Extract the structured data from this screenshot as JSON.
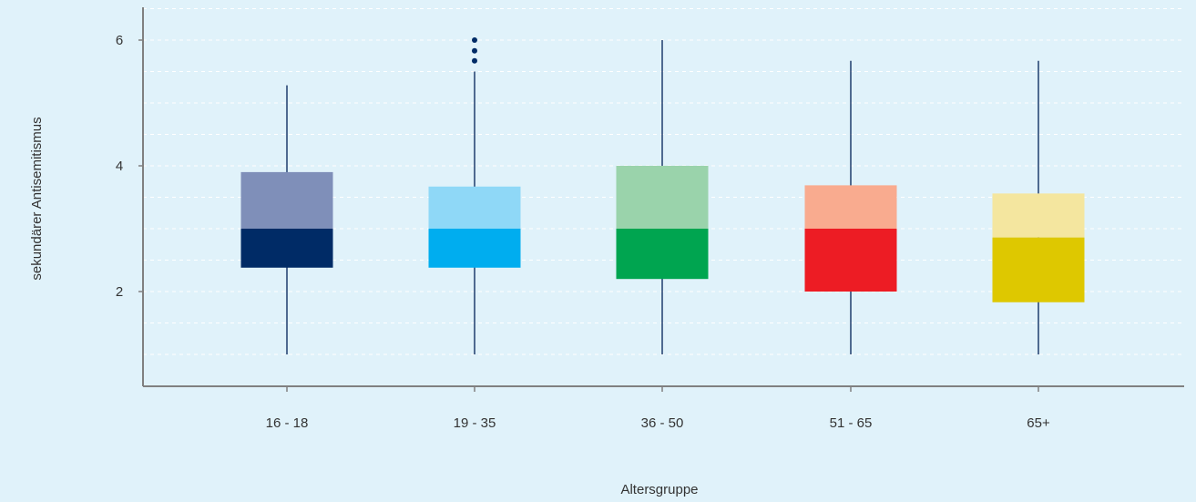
{
  "chart_data": {
    "type": "boxplot",
    "title": "",
    "xlabel": "Altersgruppe",
    "ylabel": "sekundärer Antisemitismus",
    "yticks": [
      2,
      4,
      6
    ],
    "ylim": [
      0.5,
      6.5
    ],
    "grid": true,
    "categories": [
      "16 - 18",
      "19 - 35",
      "36 - 50",
      "51 - 65",
      "65+"
    ],
    "boxes": [
      {
        "category": "16 - 18",
        "whisker_low": 1.0,
        "q1": 2.38,
        "median": 3.0,
        "q3": 3.9,
        "whisker_high": 5.28,
        "outliers": [],
        "color_lower": "#002b66",
        "color_upper": "#7f8fb9"
      },
      {
        "category": "19 - 35",
        "whisker_low": 1.0,
        "q1": 2.38,
        "median": 3.0,
        "q3": 3.67,
        "whisker_high": 5.5,
        "outliers": [
          5.67,
          5.83,
          6.0
        ],
        "color_lower": "#00adef",
        "color_upper": "#8fd8f7"
      },
      {
        "category": "36 - 50",
        "whisker_low": 1.0,
        "q1": 2.2,
        "median": 3.0,
        "q3": 4.0,
        "whisker_high": 6.0,
        "outliers": [],
        "color_lower": "#00a550",
        "color_upper": "#9ad3ab"
      },
      {
        "category": "51 - 65",
        "whisker_low": 1.0,
        "q1": 2.0,
        "median": 3.0,
        "q3": 3.69,
        "whisker_high": 5.67,
        "outliers": [],
        "color_lower": "#ed1c24",
        "color_upper": "#f9ab8f"
      },
      {
        "category": "65+",
        "whisker_low": 1.0,
        "q1": 1.83,
        "median": 2.86,
        "q3": 3.56,
        "whisker_high": 5.67,
        "outliers": [],
        "color_lower": "#dec800",
        "color_upper": "#f4e69f"
      }
    ],
    "colors": {
      "background": "#e0f2fa",
      "axis": "#808080",
      "grid": "#ffffff",
      "whisker": "#1f3d6d",
      "outlier": "#002b66"
    }
  }
}
